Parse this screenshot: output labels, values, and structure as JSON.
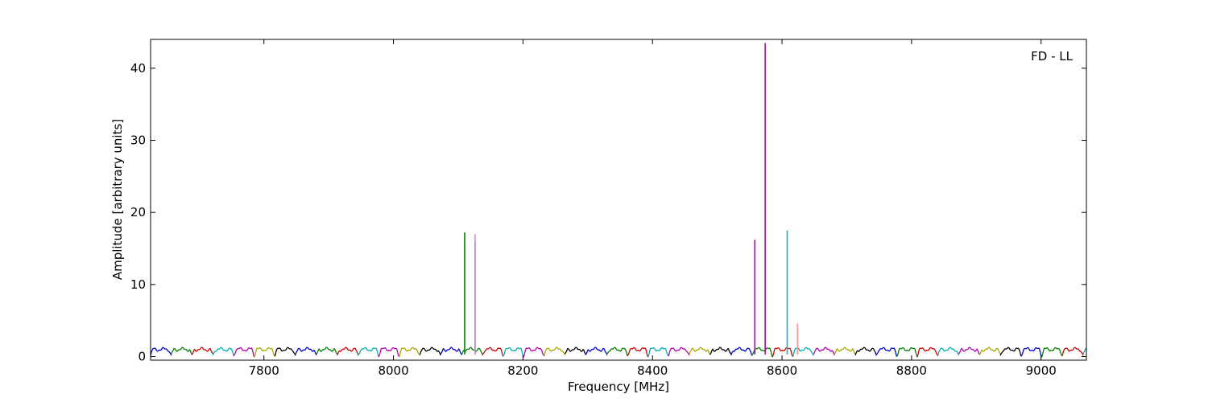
{
  "chart_data": {
    "type": "line",
    "title": "",
    "annotation": "FD - LL",
    "xlabel": "Frequency [MHz]",
    "ylabel": "Amplitude [arbitrary units]",
    "xlim": [
      7625,
      9070
    ],
    "ylim": [
      -0.5,
      44
    ],
    "x_ticks": [
      7800,
      8000,
      8200,
      8400,
      8600,
      8800,
      9000
    ],
    "y_ticks": [
      0,
      10,
      20,
      30,
      40
    ],
    "x_tick_labels": [
      "7800",
      "8000",
      "8200",
      "8400",
      "8600",
      "8800",
      "9000"
    ],
    "y_tick_labels": [
      "0",
      "10",
      "20",
      "30",
      "40"
    ],
    "grid": false,
    "legend": "none",
    "channel_width_mhz": 32,
    "channel_start_mhz": 7625,
    "channel_baseline": 1.0,
    "channel_colors": [
      "#0000cc",
      "#007f00",
      "#d00000",
      "#00b2b2",
      "#b200b2",
      "#a8a800",
      "#000000"
    ],
    "spikes": [
      {
        "x": 8110,
        "y": 17.2,
        "color": "#007f00"
      },
      {
        "x": 8126,
        "y": 16.0,
        "color": "#007f00"
      },
      {
        "x": 8126,
        "y": 17.0,
        "color": "#dd88dd"
      },
      {
        "x": 8558,
        "y": 16.2,
        "color": "#b200b2"
      },
      {
        "x": 8574,
        "y": 43.5,
        "color": "#b200b2"
      },
      {
        "x": 8608,
        "y": 17.5,
        "color": "#20b2aa"
      },
      {
        "x": 8624,
        "y": 4.3,
        "color": "#20b2aa"
      },
      {
        "x": 8624,
        "y": 4.6,
        "color": "#ff9999"
      }
    ]
  }
}
